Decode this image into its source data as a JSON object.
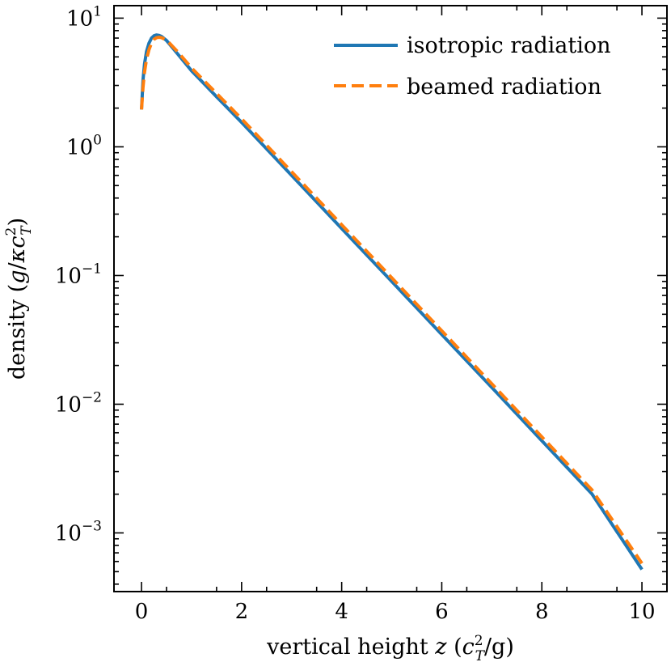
{
  "chart_data": {
    "type": "line",
    "title": "",
    "xlabel": "vertical height z (c_T^2/g)",
    "xlabel_parts": {
      "main": "vertical height ",
      "var": "z",
      "open": " (",
      "c": "c",
      "sup": "2",
      "sub": "T",
      "close": "/g)"
    },
    "ylabel": "density (g/κc_T^2)",
    "ylabel_parts": {
      "main": "density (",
      "g": "g",
      "slash": "/",
      "kappa": "κ",
      "c": "c",
      "sup": "2",
      "sub": "T",
      "close": ")"
    },
    "xlim": [
      -0.55,
      10.5
    ],
    "ylim": [
      0.00035,
      12.5
    ],
    "yscale": "log",
    "x_ticks": [
      0,
      2,
      4,
      6,
      8,
      10
    ],
    "x_tick_labels": [
      "0",
      "2",
      "4",
      "6",
      "8",
      "10"
    ],
    "y_ticks": [
      0.001,
      0.01,
      0.1,
      1,
      10
    ],
    "y_tick_labels": [
      {
        "base": "10",
        "exp": "−3"
      },
      {
        "base": "10",
        "exp": "−2"
      },
      {
        "base": "10",
        "exp": "−1"
      },
      {
        "base": "10",
        "exp": "0"
      },
      {
        "base": "10",
        "exp": "1"
      }
    ],
    "legend_position": "top-right",
    "series": [
      {
        "name": "isotropic radiation",
        "color": "#1f77b4",
        "style": "solid",
        "x": [
          0,
          0.03,
          0.06,
          0.1,
          0.15,
          0.2,
          0.25,
          0.3,
          0.35,
          0.4,
          0.5,
          0.7,
          1.0,
          1.5,
          2,
          3,
          4,
          5,
          6,
          7,
          8,
          9,
          10
        ],
        "y": [
          1.95,
          3.3,
          4.4,
          5.5,
          6.4,
          7.0,
          7.3,
          7.4,
          7.35,
          7.2,
          6.7,
          5.4,
          3.9,
          2.45,
          1.55,
          0.6,
          0.232,
          0.09,
          0.0348,
          0.0135,
          0.0052,
          0.00201,
          0.00052
        ]
      },
      {
        "name": "beamed radiation",
        "color": "#ff7f0e",
        "style": "dashed",
        "x": [
          0,
          0.03,
          0.06,
          0.1,
          0.15,
          0.2,
          0.25,
          0.3,
          0.35,
          0.4,
          0.5,
          0.7,
          1.0,
          1.5,
          2,
          3,
          4,
          5,
          6,
          7,
          8,
          9,
          10
        ],
        "y": [
          1.95,
          2.9,
          3.8,
          4.8,
          5.7,
          6.4,
          6.85,
          7.05,
          7.1,
          7.05,
          6.75,
          5.6,
          4.1,
          2.6,
          1.65,
          0.64,
          0.248,
          0.096,
          0.0372,
          0.0144,
          0.00557,
          0.00216,
          0.00058
        ]
      }
    ]
  }
}
